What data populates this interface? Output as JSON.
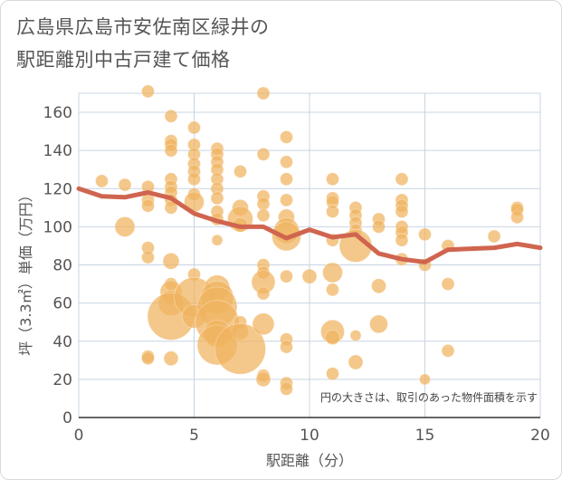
{
  "title_lines": [
    "広島県広島市安佐南区緑井の",
    "駅距離別中古戸建て価格"
  ],
  "chart_data": {
    "type": "scatter",
    "title": "広島県広島市安佐南区緑井の駅距離別中古戸建て価格",
    "xlabel": "駅距離（分）",
    "ylabel": "坪（3.3㎡）単価（万円）",
    "xlim": [
      0,
      20
    ],
    "ylim": [
      0,
      170
    ],
    "xticks": [
      0,
      5,
      10,
      15,
      20
    ],
    "yticks": [
      0,
      20,
      40,
      60,
      80,
      100,
      120,
      140,
      160
    ],
    "grid": true,
    "annotation": "円の大きさは、取引のあった物件面積を示す",
    "colors": {
      "bubble": "#f0b35e",
      "line": "#d0654f",
      "grid": "#c8d4e2"
    },
    "points": [
      {
        "x": 1,
        "y": 124,
        "s": 7
      },
      {
        "x": 2,
        "y": 122,
        "s": 7
      },
      {
        "x": 2,
        "y": 100,
        "s": 11
      },
      {
        "x": 3,
        "y": 171,
        "s": 7
      },
      {
        "x": 3,
        "y": 121,
        "s": 7
      },
      {
        "x": 3,
        "y": 114,
        "s": 7
      },
      {
        "x": 3,
        "y": 111,
        "s": 7
      },
      {
        "x": 3,
        "y": 89,
        "s": 7
      },
      {
        "x": 3,
        "y": 84,
        "s": 7
      },
      {
        "x": 3,
        "y": 32,
        "s": 7
      },
      {
        "x": 3,
        "y": 31,
        "s": 7
      },
      {
        "x": 4,
        "y": 158,
        "s": 7
      },
      {
        "x": 4,
        "y": 145,
        "s": 7
      },
      {
        "x": 4,
        "y": 143,
        "s": 7
      },
      {
        "x": 4,
        "y": 140,
        "s": 7
      },
      {
        "x": 4,
        "y": 125,
        "s": 7
      },
      {
        "x": 4,
        "y": 121,
        "s": 7
      },
      {
        "x": 4,
        "y": 118,
        "s": 7
      },
      {
        "x": 4,
        "y": 114,
        "s": 7
      },
      {
        "x": 4,
        "y": 110,
        "s": 7
      },
      {
        "x": 4,
        "y": 82,
        "s": 9
      },
      {
        "x": 4,
        "y": 70,
        "s": 7
      },
      {
        "x": 4,
        "y": 66,
        "s": 12
      },
      {
        "x": 4,
        "y": 60,
        "s": 14
      },
      {
        "x": 4,
        "y": 53,
        "s": 26
      },
      {
        "x": 4,
        "y": 31,
        "s": 8
      },
      {
        "x": 5,
        "y": 152,
        "s": 7
      },
      {
        "x": 5,
        "y": 143,
        "s": 7
      },
      {
        "x": 5,
        "y": 138,
        "s": 7
      },
      {
        "x": 5,
        "y": 133,
        "s": 7
      },
      {
        "x": 5,
        "y": 129,
        "s": 7
      },
      {
        "x": 5,
        "y": 125,
        "s": 7
      },
      {
        "x": 5,
        "y": 117,
        "s": 7
      },
      {
        "x": 5,
        "y": 113,
        "s": 11
      },
      {
        "x": 5,
        "y": 75,
        "s": 7
      },
      {
        "x": 5,
        "y": 63,
        "s": 22
      },
      {
        "x": 5,
        "y": 53,
        "s": 13
      },
      {
        "x": 6,
        "y": 141,
        "s": 7
      },
      {
        "x": 6,
        "y": 138,
        "s": 7
      },
      {
        "x": 6,
        "y": 134,
        "s": 7
      },
      {
        "x": 6,
        "y": 130,
        "s": 7
      },
      {
        "x": 6,
        "y": 125,
        "s": 7
      },
      {
        "x": 6,
        "y": 120,
        "s": 7
      },
      {
        "x": 6,
        "y": 115,
        "s": 7
      },
      {
        "x": 6,
        "y": 108,
        "s": 7
      },
      {
        "x": 6,
        "y": 104,
        "s": 7
      },
      {
        "x": 6,
        "y": 93,
        "s": 6
      },
      {
        "x": 6,
        "y": 68,
        "s": 14
      },
      {
        "x": 6,
        "y": 63,
        "s": 18
      },
      {
        "x": 6,
        "y": 58,
        "s": 22
      },
      {
        "x": 6,
        "y": 50,
        "s": 24
      },
      {
        "x": 6,
        "y": 44,
        "s": 15
      },
      {
        "x": 6,
        "y": 38,
        "s": 22
      },
      {
        "x": 7,
        "y": 129,
        "s": 7
      },
      {
        "x": 7,
        "y": 110,
        "s": 9
      },
      {
        "x": 7,
        "y": 104,
        "s": 14
      },
      {
        "x": 7,
        "y": 101,
        "s": 8
      },
      {
        "x": 7,
        "y": 50,
        "s": 7
      },
      {
        "x": 7,
        "y": 45,
        "s": 9
      },
      {
        "x": 7,
        "y": 36,
        "s": 28
      },
      {
        "x": 8,
        "y": 170,
        "s": 7
      },
      {
        "x": 8,
        "y": 138,
        "s": 7
      },
      {
        "x": 8,
        "y": 116,
        "s": 7
      },
      {
        "x": 8,
        "y": 112,
        "s": 7
      },
      {
        "x": 8,
        "y": 106,
        "s": 7
      },
      {
        "x": 8,
        "y": 80,
        "s": 7
      },
      {
        "x": 8,
        "y": 76,
        "s": 7
      },
      {
        "x": 8,
        "y": 71,
        "s": 13
      },
      {
        "x": 8,
        "y": 65,
        "s": 7
      },
      {
        "x": 8,
        "y": 49,
        "s": 12
      },
      {
        "x": 8,
        "y": 22,
        "s": 7
      },
      {
        "x": 8,
        "y": 20,
        "s": 8
      },
      {
        "x": 9,
        "y": 147,
        "s": 7
      },
      {
        "x": 9,
        "y": 134,
        "s": 7
      },
      {
        "x": 9,
        "y": 125,
        "s": 7
      },
      {
        "x": 9,
        "y": 114,
        "s": 7
      },
      {
        "x": 9,
        "y": 105,
        "s": 9
      },
      {
        "x": 9,
        "y": 98,
        "s": 14
      },
      {
        "x": 9,
        "y": 95,
        "s": 16
      },
      {
        "x": 9,
        "y": 74,
        "s": 7
      },
      {
        "x": 9,
        "y": 41,
        "s": 7
      },
      {
        "x": 9,
        "y": 37,
        "s": 7
      },
      {
        "x": 9,
        "y": 18,
        "s": 7
      },
      {
        "x": 9,
        "y": 15,
        "s": 7
      },
      {
        "x": 10,
        "y": 74,
        "s": 8
      },
      {
        "x": 11,
        "y": 125,
        "s": 7
      },
      {
        "x": 11,
        "y": 115,
        "s": 7
      },
      {
        "x": 11,
        "y": 113,
        "s": 7
      },
      {
        "x": 11,
        "y": 108,
        "s": 7
      },
      {
        "x": 11,
        "y": 93,
        "s": 7
      },
      {
        "x": 11,
        "y": 76,
        "s": 11
      },
      {
        "x": 11,
        "y": 67,
        "s": 7
      },
      {
        "x": 11,
        "y": 45,
        "s": 13
      },
      {
        "x": 11,
        "y": 42,
        "s": 8
      },
      {
        "x": 11,
        "y": 23,
        "s": 7
      },
      {
        "x": 12,
        "y": 110,
        "s": 7
      },
      {
        "x": 12,
        "y": 106,
        "s": 7
      },
      {
        "x": 12,
        "y": 102,
        "s": 7
      },
      {
        "x": 12,
        "y": 98,
        "s": 7
      },
      {
        "x": 12,
        "y": 90,
        "s": 18
      },
      {
        "x": 12,
        "y": 43,
        "s": 6
      },
      {
        "x": 12,
        "y": 29,
        "s": 8
      },
      {
        "x": 13,
        "y": 104,
        "s": 7
      },
      {
        "x": 13,
        "y": 100,
        "s": 7
      },
      {
        "x": 13,
        "y": 69,
        "s": 8
      },
      {
        "x": 13,
        "y": 49,
        "s": 10
      },
      {
        "x": 14,
        "y": 125,
        "s": 7
      },
      {
        "x": 14,
        "y": 114,
        "s": 7
      },
      {
        "x": 14,
        "y": 111,
        "s": 7
      },
      {
        "x": 14,
        "y": 108,
        "s": 7
      },
      {
        "x": 14,
        "y": 100,
        "s": 7
      },
      {
        "x": 14,
        "y": 97,
        "s": 7
      },
      {
        "x": 14,
        "y": 93,
        "s": 7
      },
      {
        "x": 14,
        "y": 83,
        "s": 7
      },
      {
        "x": 15,
        "y": 96,
        "s": 7
      },
      {
        "x": 15,
        "y": 80,
        "s": 7
      },
      {
        "x": 15,
        "y": 20,
        "s": 6
      },
      {
        "x": 16,
        "y": 90,
        "s": 7
      },
      {
        "x": 16,
        "y": 70,
        "s": 7
      },
      {
        "x": 16,
        "y": 35,
        "s": 7
      },
      {
        "x": 18,
        "y": 95,
        "s": 7
      },
      {
        "x": 19,
        "y": 110,
        "s": 7
      },
      {
        "x": 19,
        "y": 109,
        "s": 7
      },
      {
        "x": 19,
        "y": 105,
        "s": 7
      }
    ],
    "trend": [
      {
        "x": 0,
        "y": 120
      },
      {
        "x": 1,
        "y": 116
      },
      {
        "x": 2,
        "y": 115.5
      },
      {
        "x": 3,
        "y": 118
      },
      {
        "x": 4,
        "y": 115
      },
      {
        "x": 5,
        "y": 107
      },
      {
        "x": 6,
        "y": 103
      },
      {
        "x": 7,
        "y": 100
      },
      {
        "x": 8,
        "y": 100
      },
      {
        "x": 9,
        "y": 94
      },
      {
        "x": 10,
        "y": 98.5
      },
      {
        "x": 11,
        "y": 94.5
      },
      {
        "x": 12,
        "y": 96
      },
      {
        "x": 13,
        "y": 86
      },
      {
        "x": 14,
        "y": 83
      },
      {
        "x": 15,
        "y": 81.5
      },
      {
        "x": 16,
        "y": 88
      },
      {
        "x": 17,
        "y": 88.5
      },
      {
        "x": 18,
        "y": 89
      },
      {
        "x": 19,
        "y": 91
      },
      {
        "x": 20,
        "y": 89
      }
    ]
  }
}
